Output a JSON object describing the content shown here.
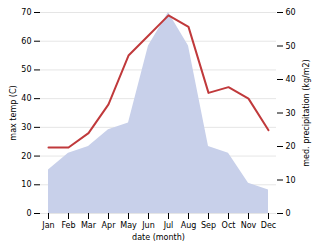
{
  "chart_data": {
    "type": "line",
    "xlabel": "date (month)",
    "ylabel": "max temp (C)",
    "y2label": "med. precipitation (kg/m2)",
    "categories": [
      "Jan",
      "Feb",
      "Mar",
      "Apr",
      "May",
      "Jun",
      "Jul",
      "Aug",
      "Sep",
      "Oct",
      "Nov",
      "Dec"
    ],
    "series": [
      {
        "type": "area",
        "color": "#c8d0ea",
        "axis": "y2",
        "values": [
          13,
          18,
          20,
          25,
          27,
          50,
          60,
          50,
          20,
          18,
          9,
          7
        ]
      },
      {
        "type": "line",
        "color": "#c0393b",
        "values": [
          23,
          23,
          28,
          38,
          55,
          62,
          69,
          65,
          42,
          44,
          40,
          29
        ]
      }
    ],
    "ylim": [
      0,
      70
    ],
    "yticks": [
      0,
      10,
      20,
      30,
      40,
      50,
      60,
      70
    ],
    "y2lim": [
      0,
      60
    ],
    "y2ticks": [
      0,
      10,
      20,
      30,
      40,
      50,
      60
    ],
    "grid": true
  }
}
